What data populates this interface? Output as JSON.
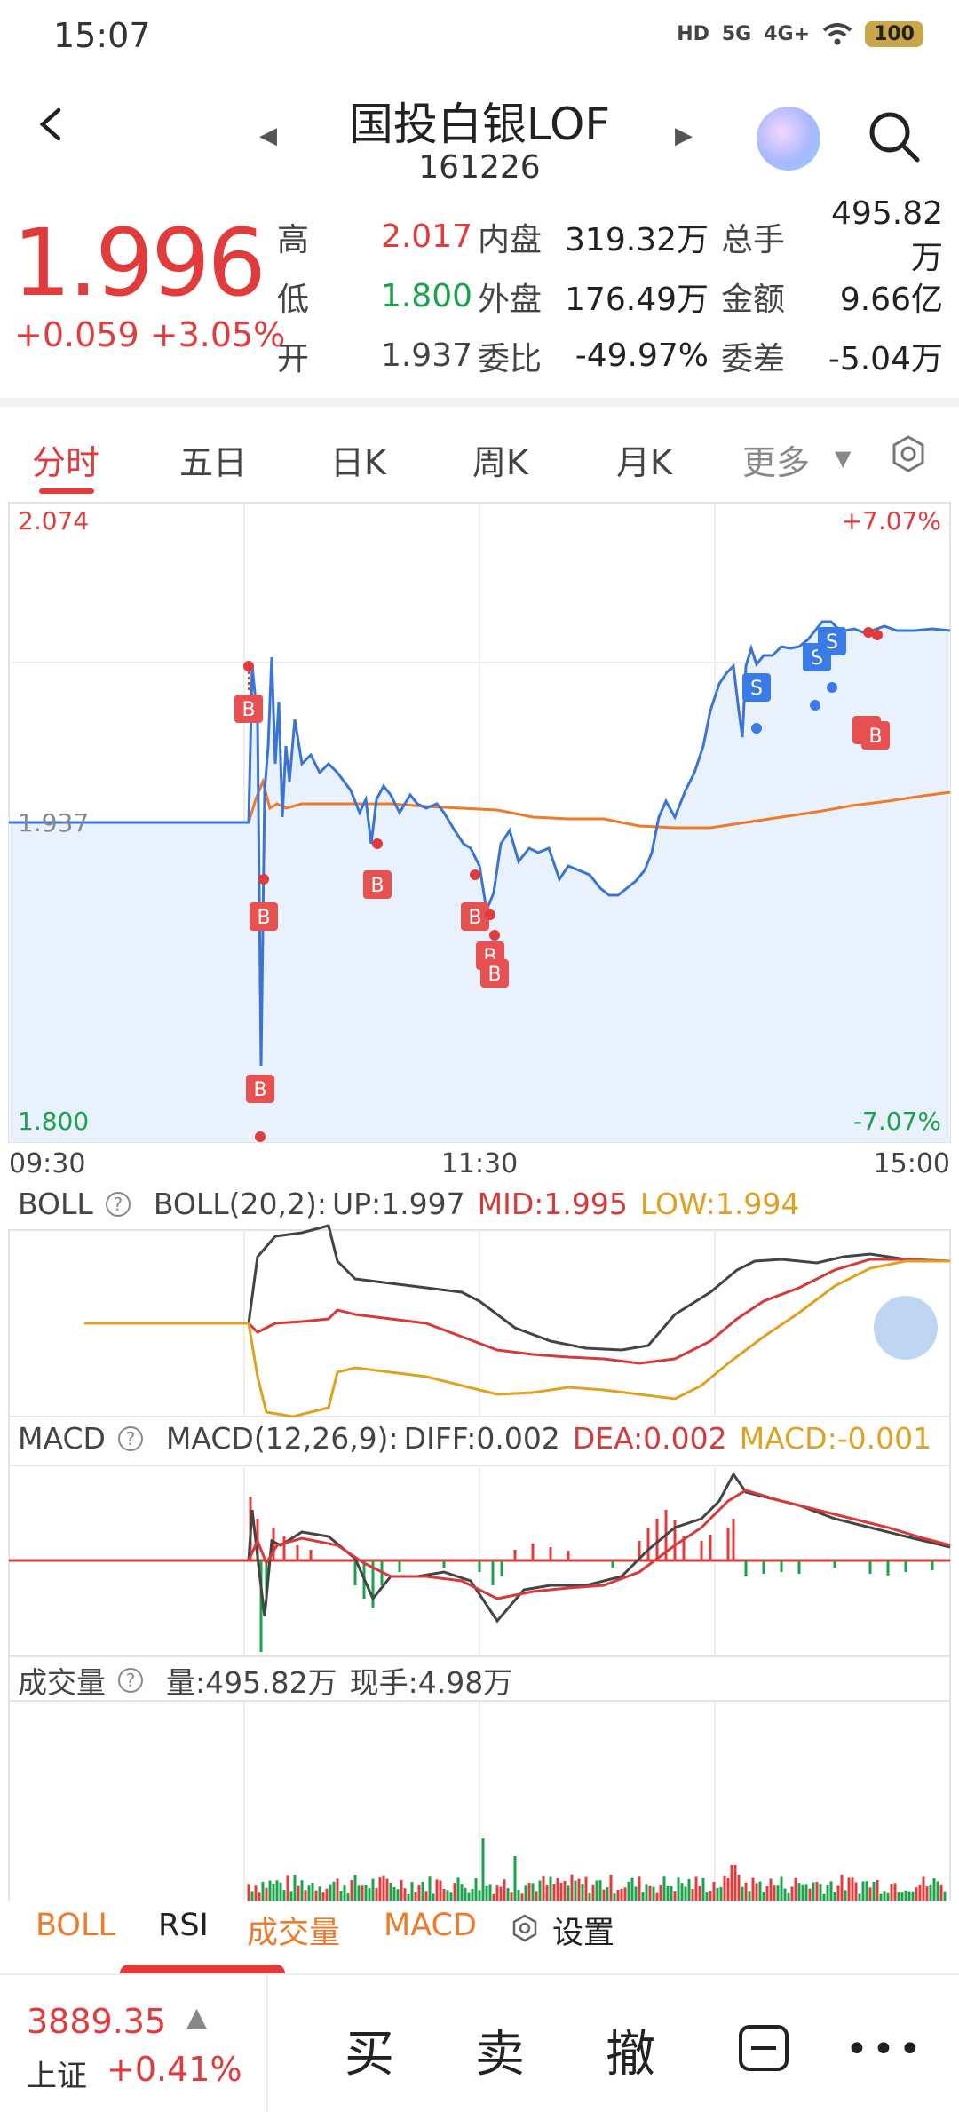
{
  "status": {
    "time": "15:07",
    "net1": "HD",
    "net2": "5G",
    "net3": "4G+",
    "battery": "100"
  },
  "header": {
    "title": "国投白银LOF",
    "code": "161226"
  },
  "quote": {
    "price": "1.996",
    "change": "+0.059",
    "change_pct": "+3.05%",
    "rows": [
      {
        "l1": "高",
        "v1": "2.017",
        "l2": "内盘",
        "v2": "319.32万",
        "l3": "总手",
        "v3": "495.82万"
      },
      {
        "l1": "低",
        "v1": "1.800",
        "l2": "外盘",
        "v2": "176.49万",
        "l3": "金额",
        "v3": "9.66亿"
      },
      {
        "l1": "开",
        "v1": "1.937",
        "l2": "委比",
        "v2": "-49.97%",
        "l3": "委差",
        "v3": "-5.04万"
      }
    ]
  },
  "tabs": [
    "分时",
    "五日",
    "日K",
    "周K",
    "月K",
    "更多"
  ],
  "chart": {
    "ymax": "2.074",
    "ymax_pct": "+7.07%",
    "yref": "1.937",
    "ymin": "1.800",
    "ymin_pct": "-7.07%",
    "x_start": "09:30",
    "x_mid": "11:30",
    "x_end": "15:00",
    "buy_marker": "B",
    "sell_marker": "S"
  },
  "boll": {
    "name": "BOLL",
    "params": "BOLL(20,2):",
    "up": "UP:1.997",
    "mid": "MID:1.995",
    "low": "LOW:1.994"
  },
  "macd": {
    "name": "MACD",
    "params": "MACD(12,26,9):",
    "diff": "DIFF:0.002",
    "dea": "DEA:0.002",
    "macd": "MACD:-0.001"
  },
  "vol": {
    "name": "成交量",
    "total": "量:495.82万",
    "now": "现手:4.98万"
  },
  "bottom_tabs": [
    "BOLL",
    "RSI",
    "成交量",
    "MACD",
    "设置"
  ],
  "footer": {
    "index_value": "3889.35",
    "index_name": "上证",
    "index_change": "+0.41%",
    "buy": "买",
    "sell": "卖",
    "cancel": "撤"
  },
  "colors": {
    "up": "#e23b3b",
    "down": "#1aa34a",
    "price_line": "#3a74d6",
    "avg_line": "#ee7a2a"
  }
}
